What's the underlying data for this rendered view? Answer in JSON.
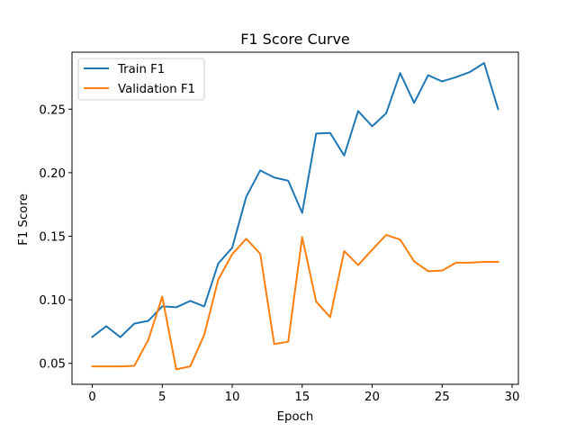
{
  "chart_data": {
    "type": "line",
    "title": "F1 Score Curve",
    "xlabel": "Epoch",
    "ylabel": "F1 Score",
    "xlim": [
      -1.45,
      30.45
    ],
    "ylim": [
      0.0335,
      0.2948
    ],
    "xticks": [
      0,
      5,
      10,
      15,
      20,
      25,
      30
    ],
    "yticks": [
      0.05,
      0.1,
      0.15,
      0.2,
      0.25
    ],
    "ytick_labels": [
      "0.05",
      "0.10",
      "0.15",
      "0.20",
      "0.25"
    ],
    "legend_position": "upper-left",
    "grid": false,
    "x": [
      0,
      1,
      2,
      3,
      4,
      5,
      6,
      7,
      8,
      9,
      10,
      11,
      12,
      13,
      14,
      15,
      16,
      17,
      18,
      19,
      20,
      21,
      22,
      23,
      24,
      25,
      26,
      27,
      28,
      29
    ],
    "series": [
      {
        "name": "Train F1",
        "color": "#1f77b4",
        "values": [
          0.0708,
          0.0792,
          0.0706,
          0.0812,
          0.0834,
          0.0948,
          0.0941,
          0.0991,
          0.0948,
          0.1285,
          0.141,
          0.181,
          0.2018,
          0.1962,
          0.1937,
          0.1684,
          0.2308,
          0.2312,
          0.2135,
          0.2485,
          0.2365,
          0.2467,
          0.2784,
          0.2549,
          0.2767,
          0.2718,
          0.2752,
          0.2793,
          0.2863,
          0.25
        ]
      },
      {
        "name": "Validation F1",
        "color": "#ff7f0e",
        "values": [
          0.0476,
          0.0476,
          0.0476,
          0.048,
          0.0683,
          0.1025,
          0.0453,
          0.0476,
          0.0724,
          0.1159,
          0.1359,
          0.148,
          0.1362,
          0.0652,
          0.067,
          0.1493,
          0.0985,
          0.0863,
          0.1383,
          0.1273,
          0.1393,
          0.151,
          0.1474,
          0.1302,
          0.1225,
          0.123,
          0.1292,
          0.1292,
          0.1298,
          0.1298
        ]
      }
    ]
  }
}
